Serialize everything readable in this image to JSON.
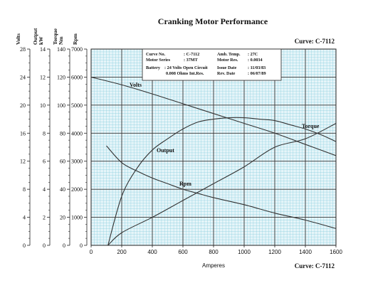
{
  "title": "Cranking Motor Performance",
  "curve_label": "Curve: C-7112",
  "info_box": [
    {
      "label": "Curve No.",
      "value": ": C-7112",
      "label2": "Amb. Temp.",
      "value2": ": 27C"
    },
    {
      "label": "Motor Series",
      "value": ": 37MT",
      "label2": "Motor Res.",
      "value2": ": 0.0034"
    },
    {
      "label": "Battery",
      "value": ": 24 Volts Open Circuit",
      "label2": "Issue Date",
      "value2": ": 11/03/83"
    },
    {
      "label": "",
      "value": "0.008 Ohms Int.Res.",
      "label2": "Rev. Date",
      "value2": ": 06/07/89"
    }
  ],
  "chart_data": {
    "type": "line",
    "title": "Cranking Motor Performance",
    "xlabel": "Amperes",
    "xlim": [
      0,
      1600
    ],
    "xticks": [
      0,
      200,
      400,
      600,
      800,
      1000,
      1200,
      1400,
      1600
    ],
    "grid": true,
    "axes": [
      {
        "id": "volts",
        "label": "Volts",
        "range": [
          0,
          28
        ],
        "ticks": [
          0,
          4,
          8,
          12,
          16,
          20,
          24,
          28
        ]
      },
      {
        "id": "output",
        "label": "Output kW",
        "range": [
          0,
          14
        ],
        "ticks": [
          0,
          2,
          4,
          6,
          8,
          10,
          12,
          14
        ]
      },
      {
        "id": "torque",
        "label": "Torque Nm",
        "range": [
          0,
          140
        ],
        "ticks": [
          0,
          20,
          40,
          60,
          80,
          100,
          120,
          140
        ]
      },
      {
        "id": "rpm",
        "label": "Rpm",
        "range": [
          0,
          7000
        ],
        "ticks": [
          0,
          1000,
          2000,
          3000,
          4000,
          5000,
          6000,
          7000
        ]
      }
    ],
    "series": [
      {
        "name": "Volts",
        "axis": "volts",
        "x": [
          0,
          200,
          400,
          600,
          800,
          1000,
          1200,
          1400,
          1600
        ],
        "y": [
          24,
          22.9,
          21.6,
          20.2,
          18.8,
          17.4,
          16.0,
          14.4,
          12.8
        ]
      },
      {
        "name": "Torque",
        "axis": "torque",
        "x": [
          110,
          200,
          400,
          600,
          800,
          1000,
          1200,
          1400,
          1600
        ],
        "y": [
          0,
          9,
          20,
          32,
          44,
          56,
          70,
          76,
          87
        ]
      },
      {
        "name": "Output",
        "axis": "output",
        "x": [
          110,
          200,
          300,
          400,
          500,
          600,
          700,
          800,
          900,
          1000,
          1100,
          1200,
          1300,
          1400,
          1500,
          1600
        ],
        "y": [
          0,
          3.5,
          5.5,
          6.8,
          7.6,
          8.3,
          8.8,
          9.0,
          9.1,
          9.1,
          9.0,
          8.9,
          8.6,
          8.3,
          7.9,
          7.4
        ]
      },
      {
        "name": "Rpm",
        "axis": "rpm",
        "x": [
          100,
          200,
          300,
          400,
          500,
          600,
          700,
          800,
          1000,
          1200,
          1400,
          1600
        ],
        "y": [
          3550,
          2950,
          2650,
          2400,
          2200,
          2000,
          1850,
          1700,
          1450,
          1150,
          900,
          600
        ]
      }
    ],
    "annotations": [
      "Volts",
      "Torque",
      "Output",
      "Rpm"
    ]
  }
}
